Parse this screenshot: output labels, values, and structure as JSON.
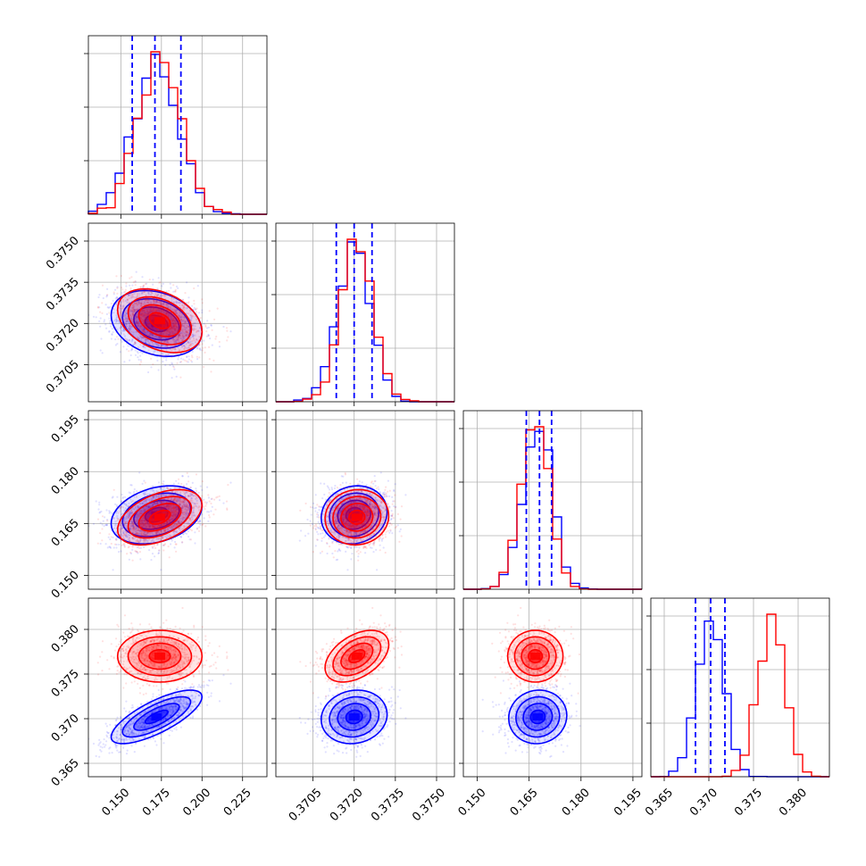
{
  "chart_data": {
    "type": "corner",
    "grid": true,
    "colors": {
      "series_a": "#0000ff",
      "series_b": "#ff0000"
    },
    "parameters": [
      {
        "range": [
          0.13,
          0.24
        ],
        "ticks": [
          0.15,
          0.175,
          0.2,
          0.225
        ],
        "tick_labels": [
          "0.150",
          "0.175",
          "0.200",
          "0.225"
        ]
      },
      {
        "range": [
          0.36915,
          0.37565
        ],
        "ticks": [
          0.3705,
          0.372,
          0.3735,
          0.375
        ],
        "tick_labels": [
          "0.3705",
          "0.3720",
          "0.3735",
          "0.3750"
        ]
      },
      {
        "range": [
          0.146,
          0.1976
        ],
        "ticks": [
          0.15,
          0.165,
          0.18,
          0.195
        ],
        "tick_labels": [
          "0.150",
          "0.165",
          "0.180",
          "0.195"
        ]
      },
      {
        "range": [
          0.3635,
          0.3835
        ],
        "ticks": [
          0.365,
          0.37,
          0.375,
          0.38
        ],
        "tick_labels": [
          "0.365",
          "0.370",
          "0.375",
          "0.380"
        ]
      }
    ],
    "series": [
      {
        "color": "#0000ff",
        "means": [
          0.172,
          0.372,
          0.1675,
          0.3702
        ],
        "stds": [
          0.014,
          0.0006,
          0.0042,
          0.0015
        ],
        "quantiles": [
          [
            0.157,
            0.171,
            0.187
          ],
          [
            0.37135,
            0.372,
            0.37265
          ],
          [
            0.1642,
            0.168,
            0.1715
          ],
          [
            0.3685,
            0.3702,
            0.3718
          ]
        ],
        "correlations": [
          [
            1.0,
            -0.25,
            0.3,
            0.75
          ],
          [
            -0.25,
            1.0,
            0.1,
            0.1
          ],
          [
            0.3,
            0.1,
            1.0,
            0.05
          ],
          [
            0.75,
            0.1,
            0.05,
            1.0
          ]
        ]
      },
      {
        "color": "#ff0000",
        "means": [
          0.174,
          0.3721,
          0.1668,
          0.377
        ],
        "stds": [
          0.013,
          0.00058,
          0.004,
          0.00145
        ],
        "quantiles": [],
        "correlations": [
          [
            1.0,
            -0.35,
            0.45,
            0.0
          ],
          [
            -0.35,
            1.0,
            0.05,
            0.45
          ],
          [
            0.45,
            0.05,
            1.0,
            0.0
          ],
          [
            0.0,
            0.45,
            0.0,
            1.0
          ]
        ]
      }
    ]
  }
}
